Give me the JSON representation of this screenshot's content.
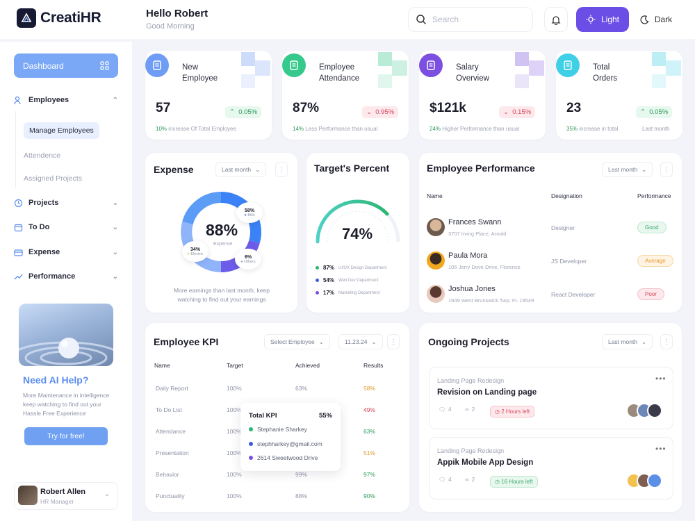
{
  "app": {
    "name": "CreatiHR"
  },
  "header": {
    "greeting": "Hello Robert",
    "subtitle": "Good Morning",
    "search_placeholder": "Search",
    "mode_light": "Light",
    "mode_dark": "Dark"
  },
  "sidebar": {
    "dashboard": "Dashboard",
    "employees": "Employees",
    "sub": [
      "Manage Employees",
      "Attendence",
      "Assigned Projects"
    ],
    "projects": "Projects",
    "todo": "To Do",
    "expense": "Expense",
    "performance": "Performance",
    "ai_title": "Need AI Help?",
    "ai_text": "More Maintenance in intelligence keep watching to find out your Hassle Free Experience",
    "ai_button": "Try for free!",
    "user_name": "Robert Allen",
    "user_role": "HR Manager"
  },
  "stats": [
    {
      "label1": "New",
      "label2": "Employee",
      "value": "57",
      "badge": "0.05%",
      "dir": "up",
      "note_pct": "10%",
      "note": "increase Of Total Employee",
      "note_right": "",
      "color": "#6f9cf4"
    },
    {
      "label1": "Employee",
      "label2": "Attendance",
      "value": "87%",
      "badge": "0.95%",
      "dir": "down",
      "note_pct": "14%",
      "note": "Less Performance than usual",
      "note_right": "",
      "color": "#35c98c"
    },
    {
      "label1": "Salary",
      "label2": "Overview",
      "value": "$121k",
      "badge": "0.15%",
      "dir": "down",
      "note_pct": "24%",
      "note": "Higher Performance than usual",
      "note_right": "",
      "color": "#7b4fe0"
    },
    {
      "label1": "Total",
      "label2": "Orders",
      "value": "23",
      "badge": "0.05%",
      "dir": "up",
      "note_pct": "35%",
      "note": "increase in total",
      "note_right": "Last month",
      "color": "#3fcfe6"
    }
  ],
  "expense": {
    "title": "Expense",
    "filter": "Last month",
    "center_value": "88%",
    "center_label": "Expense",
    "callouts": [
      {
        "pct": "58%",
        "label": "Bills",
        "color": "#4b7be8"
      },
      {
        "pct": "34%",
        "label": "Electric",
        "color": "#f2c14e"
      },
      {
        "pct": "6%",
        "label": "Others",
        "color": "#9ea2b4"
      }
    ],
    "note": "More earnings than last month, keep watching to find out your earnings"
  },
  "target": {
    "title": "Target's Percent",
    "value": "74%",
    "items": [
      {
        "pct": "87%",
        "label": "UI/UX Design Department",
        "color": "#2bb673"
      },
      {
        "pct": "54%",
        "label": "Web Dev Department",
        "color": "#3b5bdb"
      },
      {
        "pct": "17%",
        "label": "Marketing Department",
        "color": "#7b4fe0"
      }
    ]
  },
  "performance": {
    "title": "Employee Performance",
    "filter": "Last month",
    "headers": [
      "Name",
      "Designation",
      "Performance"
    ],
    "rows": [
      {
        "name": "Frances Swann",
        "address": "3707 Irving Place, Arnold",
        "designation": "Designer",
        "status": "Good",
        "cls": "good"
      },
      {
        "name": "Paula Mora",
        "address": "105 Jerry Dove Drive, Florence",
        "designation": "JS Developer",
        "status": "Average",
        "cls": "avg"
      },
      {
        "name": "Joshua Jones",
        "address": "1949 West Brunswick Twp, FL 18549",
        "designation": "React Developer",
        "status": "Poor",
        "cls": "poor"
      }
    ]
  },
  "kpi": {
    "title": "Employee KPI",
    "select": "Select Employee",
    "date": "11.23.24",
    "headers": [
      "Name",
      "Target",
      "Achieved",
      "Results"
    ],
    "rows": [
      {
        "name": "Daily Report",
        "target": "100%",
        "achieved": "63%",
        "result": "58%",
        "color": "#e49a2c"
      },
      {
        "name": "To Do List",
        "target": "100%",
        "achieved": "",
        "result": "49%",
        "color": "#d5475d"
      },
      {
        "name": "Attendance",
        "target": "100%",
        "achieved": "",
        "result": "63%",
        "color": "#2e9a5a"
      },
      {
        "name": "Presentation",
        "target": "100%",
        "achieved": "",
        "result": "51%",
        "color": "#e49a2c"
      },
      {
        "name": "Behavior",
        "target": "100%",
        "achieved": "99%",
        "result": "97%",
        "color": "#2e9a5a"
      },
      {
        "name": "Punctuality",
        "target": "100%",
        "achieved": "88%",
        "result": "90%",
        "color": "#2e9a5a"
      }
    ],
    "tooltip": {
      "title": "Total KPI",
      "value": "55%",
      "name": "Stephanie Sharkey",
      "email": "stephharkey@gmail.com",
      "address": "2614 Sweetwood Drive"
    }
  },
  "projects": {
    "title": "Ongoing Projects",
    "filter": "Last month",
    "items": [
      {
        "category": "Landing Page Redesign",
        "name": "Revision on Landing page",
        "comments": "4",
        "links": "2",
        "time": "2 Hours left",
        "cls": "poor"
      },
      {
        "category": "Landing Page Redesign",
        "name": "Appik Mobile App Design",
        "comments": "4",
        "links": "2",
        "time": "16 Hours left",
        "cls": "good"
      }
    ]
  }
}
